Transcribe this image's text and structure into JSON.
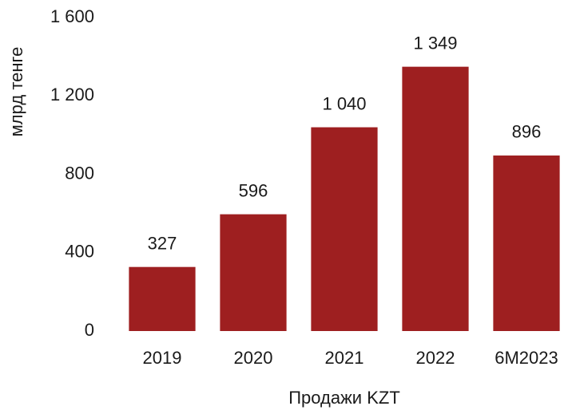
{
  "chart_data": {
    "type": "bar",
    "x_label": "Продажи KZT",
    "y_label": "млрд тенге",
    "categories": [
      "2019",
      "2020",
      "2021",
      "2022",
      "6M2023"
    ],
    "values": [
      327,
      596,
      1040,
      1349,
      896
    ],
    "value_labels": [
      "327",
      "596",
      "1 040",
      "1 349",
      "896"
    ],
    "color": "#9e1f20",
    "ylim": [
      0,
      1600
    ],
    "yticks": [
      0,
      400,
      800,
      {
        "value": 1200,
        "label": "1 200"
      },
      {
        "value": 1600,
        "label": "1 600"
      }
    ],
    "grid": false
  }
}
